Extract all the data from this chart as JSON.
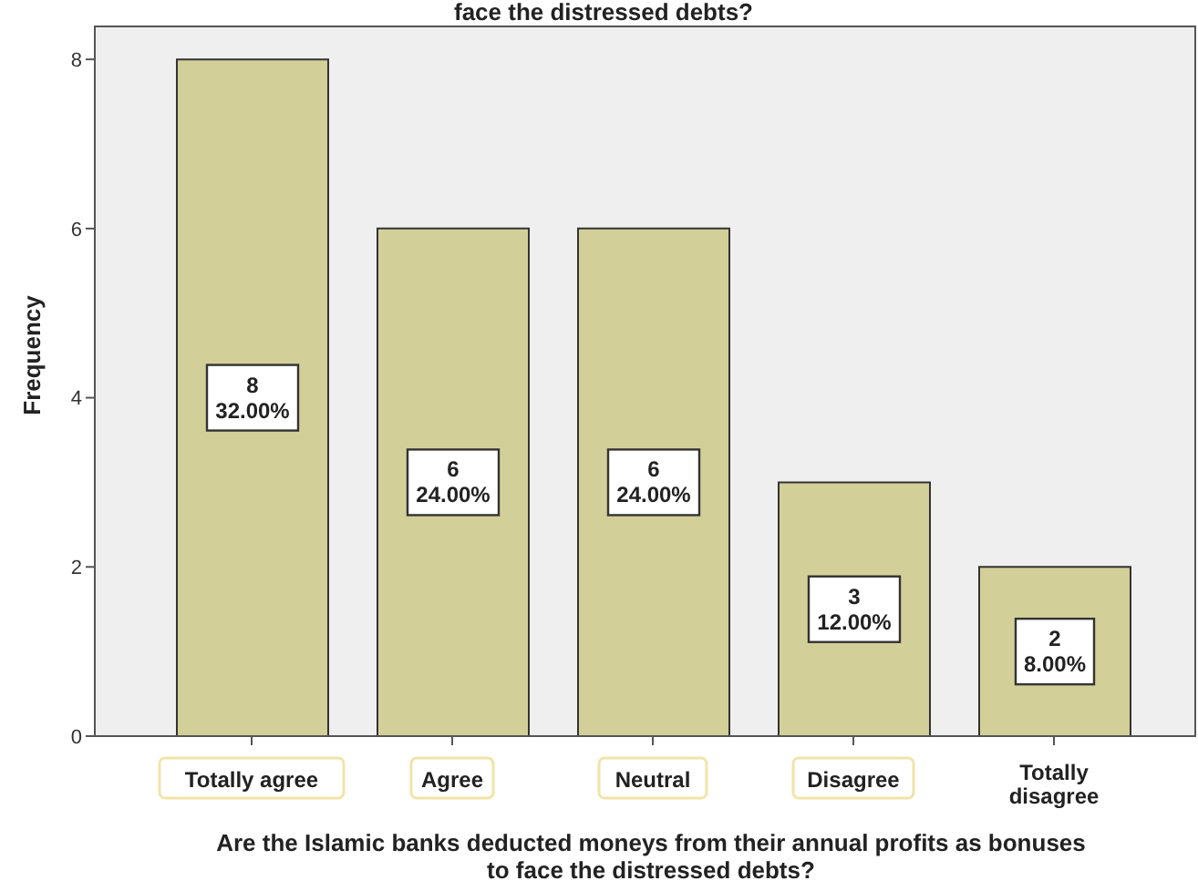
{
  "chart_data": {
    "type": "bar",
    "title": "face the distressed debts?",
    "xlabel": "Are the Islamic banks deducted moneys from their annual profits as bonuses to face the distressed debts?",
    "ylabel": "Frequency",
    "categories": [
      "Totally agree",
      "Agree",
      "Neutral",
      "Disagree",
      "Totally disagree"
    ],
    "values": [
      8,
      6,
      6,
      3,
      2
    ],
    "value_labels": [
      "8\n32.00%",
      "6\n24.00%",
      "6\n24.00%",
      "3\n12.00%",
      "2\n8.00%"
    ],
    "color": "#d3cf98",
    "ylim": [
      0,
      8.4
    ],
    "yticks": [
      0,
      2,
      4,
      6,
      8
    ]
  }
}
